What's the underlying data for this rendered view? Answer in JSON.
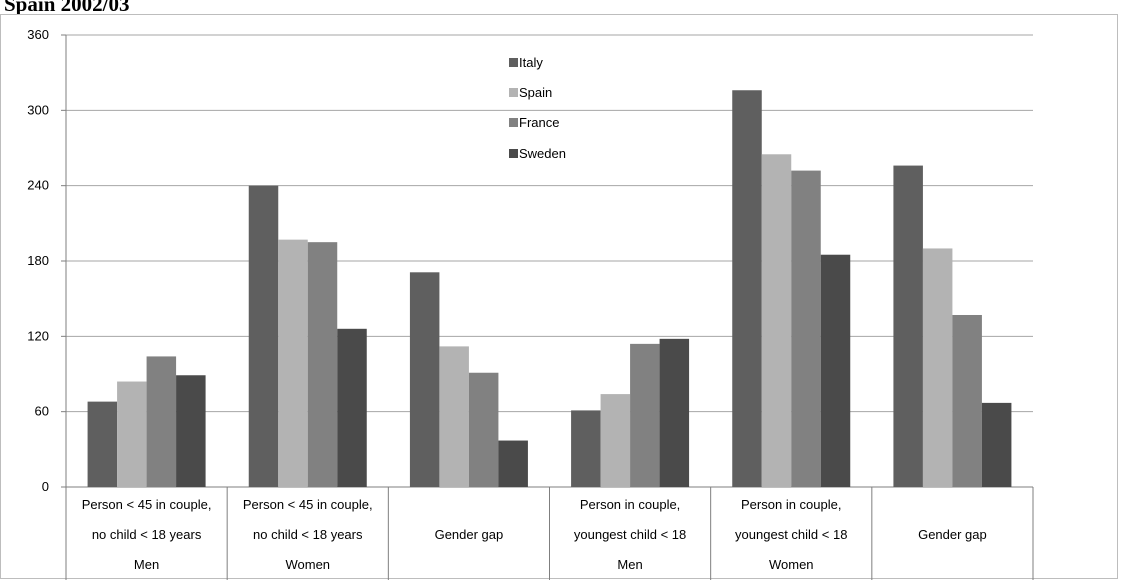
{
  "header": {
    "title": "Spain 2002/03"
  },
  "colors": {
    "Italy": "#5f5f5f",
    "Spain": "#b3b3b3",
    "France": "#818181",
    "Sweden": "#4a4a4a",
    "grid": "#a6a6a6",
    "axis": "#7f7f7f"
  },
  "chart_data": {
    "type": "bar",
    "title": "",
    "ylim": [
      0,
      360
    ],
    "yticks": [
      "0",
      "60",
      "120",
      "180",
      "240",
      "300",
      "360"
    ],
    "grid": true,
    "legend_position": "top-center",
    "categories": [
      [
        "Person < 45 in couple,",
        "no child < 18 years",
        "Men"
      ],
      [
        "Person < 45 in couple,",
        "no child < 18 years",
        "Women"
      ],
      [
        "Gender gap"
      ],
      [
        "Person in couple,",
        "youngest child < 18",
        "Men"
      ],
      [
        "Person in couple,",
        "youngest child < 18",
        "Women"
      ],
      [
        "Gender gap"
      ]
    ],
    "series": [
      {
        "name": "Italy",
        "values": [
          68,
          240,
          171,
          61,
          316,
          256
        ]
      },
      {
        "name": "Spain",
        "values": [
          84,
          197,
          112,
          74,
          265,
          190
        ]
      },
      {
        "name": "France",
        "values": [
          104,
          195,
          91,
          114,
          252,
          137
        ]
      },
      {
        "name": "Sweden",
        "values": [
          89,
          126,
          37,
          118,
          185,
          67
        ]
      }
    ]
  }
}
